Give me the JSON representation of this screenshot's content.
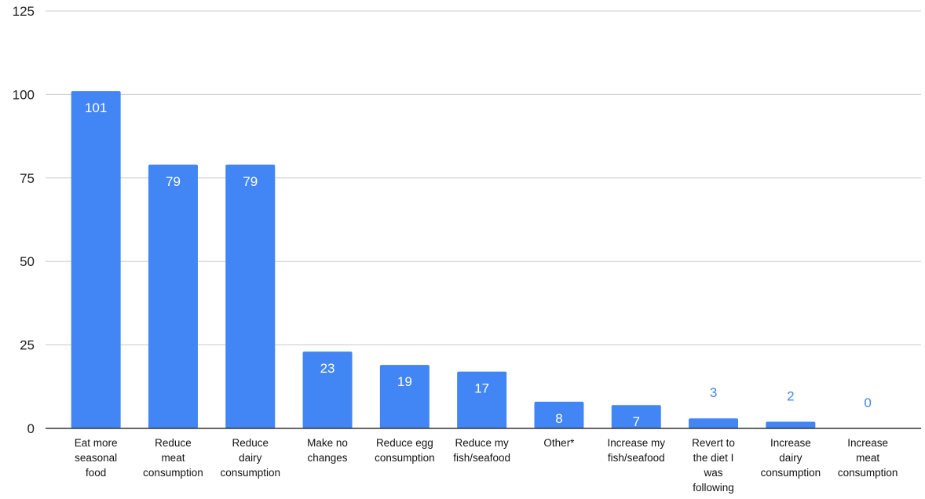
{
  "chart_data": {
    "type": "bar",
    "title": "",
    "xlabel": "",
    "ylabel": "",
    "ylim": [
      0,
      125
    ],
    "yticks": [
      0,
      25,
      50,
      75,
      100,
      125
    ],
    "grid": true,
    "legend": "none",
    "categories": [
      [
        "Eat more",
        "seasonal",
        "food"
      ],
      [
        "Reduce",
        "meat",
        "consumption"
      ],
      [
        "Reduce",
        "dairy",
        "consumption"
      ],
      [
        "Make no",
        "changes"
      ],
      [
        "Reduce egg",
        "consumption"
      ],
      [
        "Reduce my",
        "fish/seafood"
      ],
      [
        "Other*"
      ],
      [
        "Increase my",
        "fish/seafood"
      ],
      [
        "Revert to",
        "the diet I",
        "was",
        "following"
      ],
      [
        "Increase",
        "dairy",
        "consumption"
      ],
      [
        "Increase",
        "meat",
        "consumption"
      ]
    ],
    "values": [
      101,
      79,
      79,
      23,
      19,
      17,
      8,
      7,
      3,
      2,
      0
    ],
    "colors": {
      "bar": "#4285f4",
      "label_inside": "#ffffff",
      "label_outside": "#4285f4",
      "grid": "#cccccc",
      "axis": "#333333"
    }
  }
}
